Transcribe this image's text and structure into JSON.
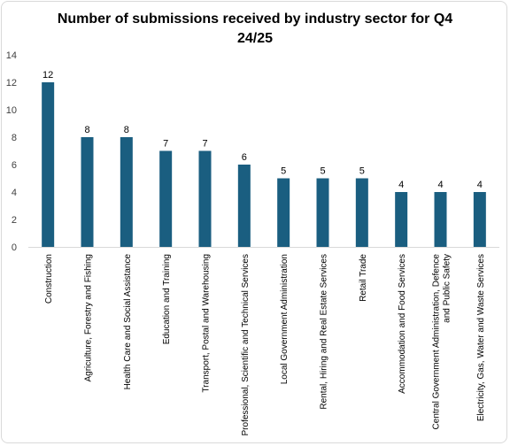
{
  "chart_data": {
    "type": "bar",
    "title": "Number of submissions received by industry sector for Q4 24/25",
    "xlabel": "",
    "ylabel": "",
    "ylim": [
      0,
      14
    ],
    "yticks": [
      "0",
      "2",
      "4",
      "6",
      "8",
      "10",
      "12",
      "14"
    ],
    "grid": false,
    "legend": "none",
    "bar_color": "#1a5e80",
    "categories": [
      "Construction",
      "Agriculture, Forestry and Fishing",
      "Health Care and Social Assistance",
      "Education and Training",
      "Transport, Postal and Warehousing",
      "Professional, Scientific and Technical Services",
      "Local Government Administration",
      "Rental, Hiring and Real Estate Services",
      "Retail Trade",
      "Accommodation and Food Services",
      "Central Government Administration, Defence and Public Safety",
      "Electricity, Gas, Water and Waste Services"
    ],
    "category_lines": [
      [
        "Construction"
      ],
      [
        "Agriculture, Forestry and Fishing"
      ],
      [
        "Health Care and Social Assistance"
      ],
      [
        "Education and Training"
      ],
      [
        "Transport, Postal and Warehousing"
      ],
      [
        "Professional, Scientific and Technical Services"
      ],
      [
        "Local Government Administration"
      ],
      [
        "Rental, Hiring and Real Estate Services"
      ],
      [
        "Retail Trade"
      ],
      [
        "Accommodation and Food Services"
      ],
      [
        "Central Government Administration, Defence",
        "and Public Safety"
      ],
      [
        "Electricity, Gas, Water and Waste Services"
      ]
    ],
    "values": [
      12,
      8,
      8,
      7,
      7,
      6,
      5,
      5,
      5,
      4,
      4,
      4
    ]
  }
}
